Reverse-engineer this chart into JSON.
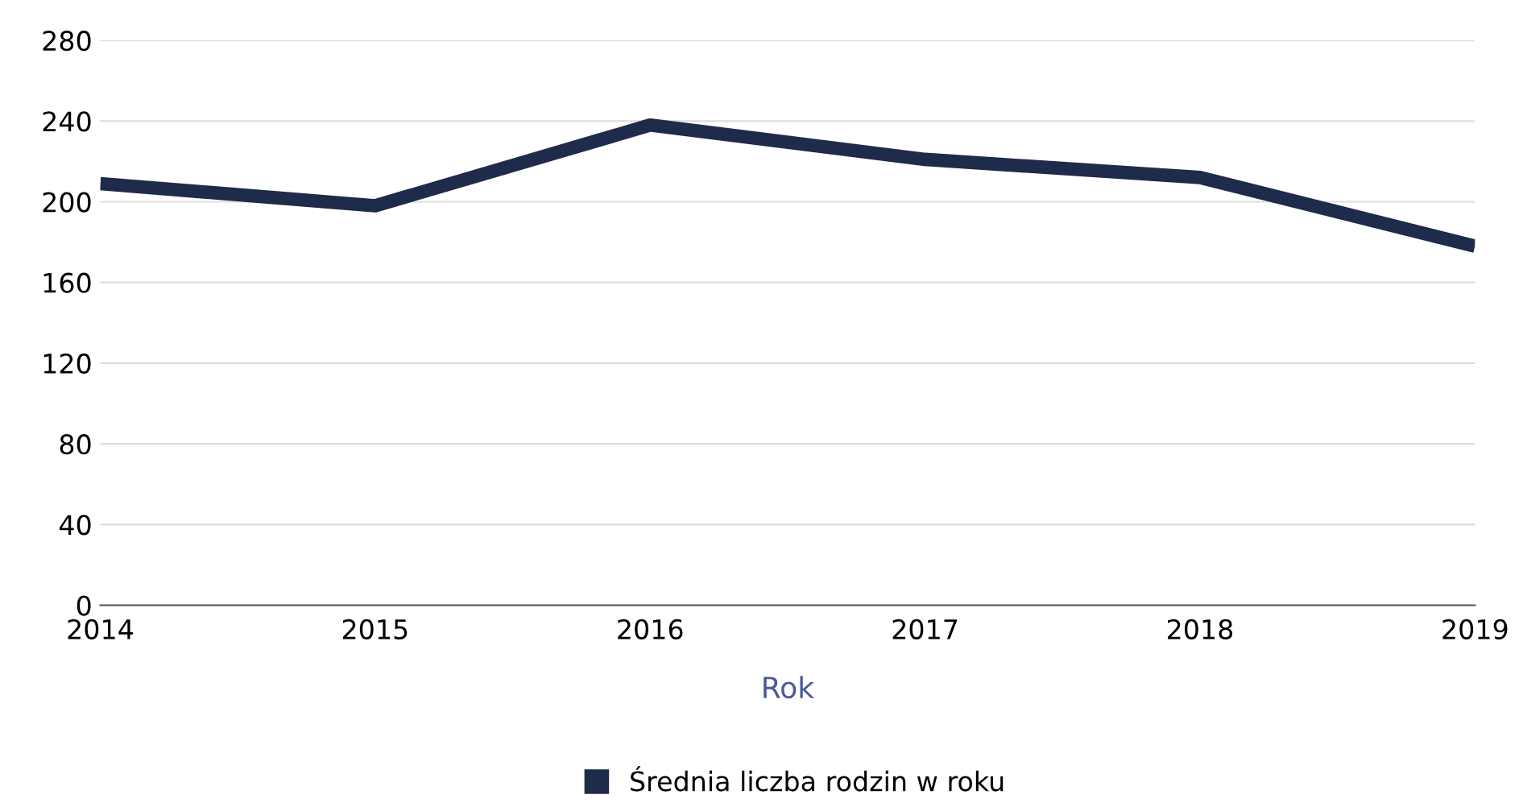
{
  "chart_data": {
    "type": "line",
    "xlabel": "Rok",
    "x": [
      2014,
      2015,
      2016,
      2017,
      2018,
      2019
    ],
    "series": [
      {
        "name": "Średnia liczba rodzin w roku",
        "color": "#1e2b4a",
        "values": [
          209,
          198,
          238,
          221,
          212,
          178
        ]
      }
    ],
    "xlim": [
      2014,
      2019
    ],
    "xticks": [
      2014,
      2015,
      2016,
      2017,
      2018,
      2019
    ],
    "ylim": [
      0,
      280
    ],
    "yticks": [
      0,
      40,
      80,
      120,
      160,
      200,
      240,
      280
    ],
    "grid": "y",
    "legend": "bottom",
    "line_style": "solid",
    "marker": "none"
  }
}
